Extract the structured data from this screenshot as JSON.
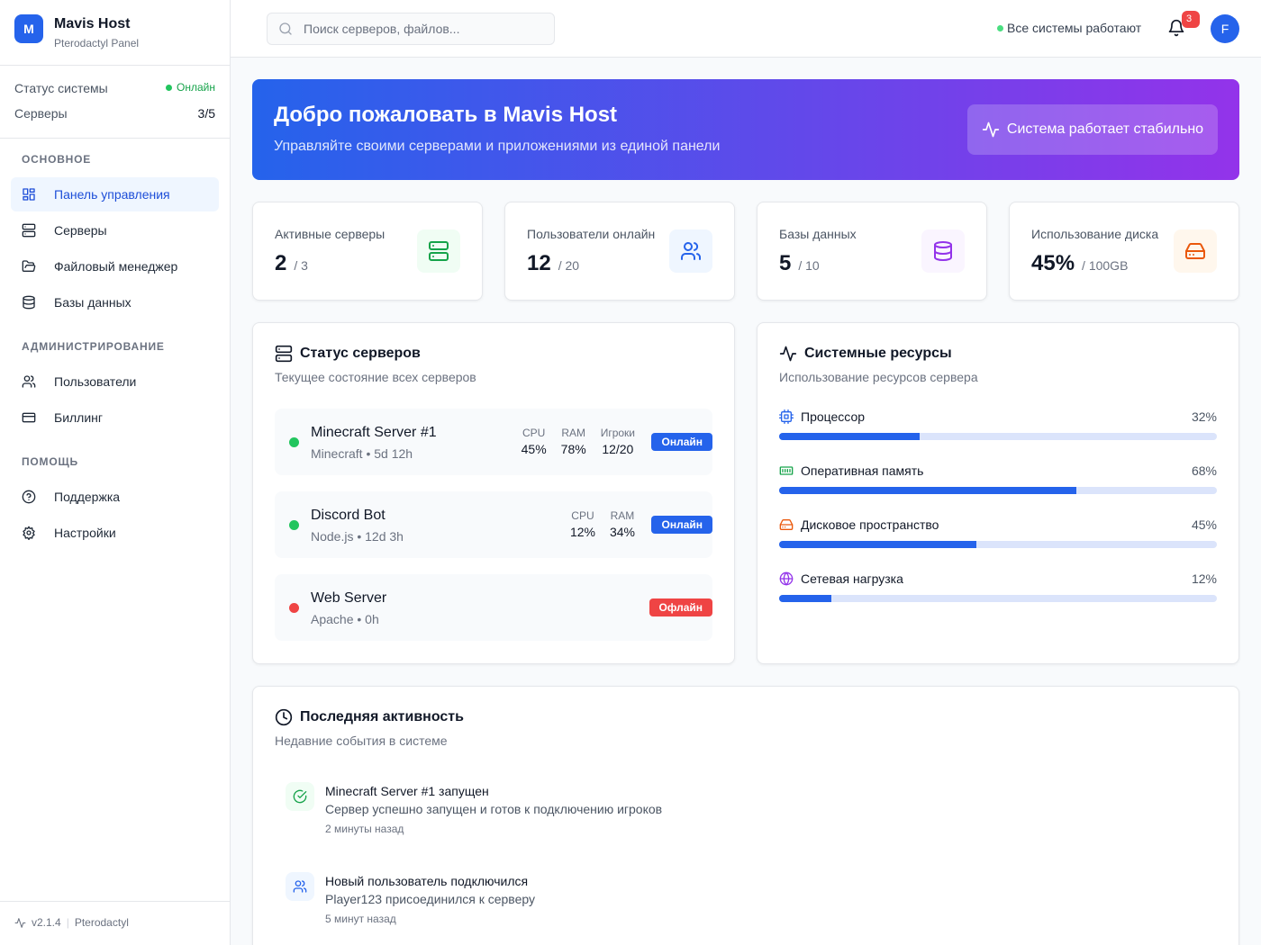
{
  "sidebar": {
    "logo": "M",
    "brand": "Mavis Host",
    "subtitle": "Pterodactyl Panel",
    "status": [
      {
        "label": "Статус системы",
        "value": "Онлайн"
      },
      {
        "label": "Серверы",
        "value": "3/5"
      }
    ],
    "sections": [
      {
        "title": "ОСНОВНОЕ",
        "items": [
          "Панель управления",
          "Серверы",
          "Файловый менеджер",
          "Базы данных"
        ]
      },
      {
        "title": "АДМИНИСТРИРОВАНИЕ",
        "items": [
          "Пользователи",
          "Биллинг"
        ]
      },
      {
        "title": "ПОМОЩЬ",
        "items": [
          "Поддержка",
          "Настройки"
        ]
      }
    ],
    "footer": {
      "version": "v2.1.4",
      "name": "Pterodactyl"
    }
  },
  "header": {
    "search_placeholder": "Поиск серверов, файлов...",
    "status": "Все системы работают",
    "notifications": "3",
    "avatar": "F"
  },
  "banner": {
    "title": "Добро пожаловать в Mavis Host",
    "subtitle": "Управляйте своими серверами и приложениями из единой панели",
    "button": "Система работает стабильно"
  },
  "stats": [
    {
      "label": "Активные серверы",
      "value": "2",
      "total": "/ 3"
    },
    {
      "label": "Пользователи онлайн",
      "value": "12",
      "total": "/ 20"
    },
    {
      "label": "Базы данных",
      "value": "5",
      "total": "/ 10"
    },
    {
      "label": "Использование диска",
      "value": "45%",
      "total": "/ 100GB"
    }
  ],
  "servers": {
    "title": "Статус серверов",
    "subtitle": "Текущее состояние всех серверов",
    "items": [
      {
        "name": "Minecraft Server #1",
        "meta": "Minecraft • 5d 12h",
        "status": "Онлайн",
        "color": "#22c55e",
        "badge_color": "#2563eb",
        "metrics": [
          {
            "label": "CPU",
            "value": "45%"
          },
          {
            "label": "RAM",
            "value": "78%"
          },
          {
            "label": "Игроки",
            "value": "12/20"
          }
        ]
      },
      {
        "name": "Discord Bot",
        "meta": "Node.js • 12d 3h",
        "status": "Онлайн",
        "color": "#22c55e",
        "badge_color": "#2563eb",
        "metrics": [
          {
            "label": "CPU",
            "value": "12%"
          },
          {
            "label": "RAM",
            "value": "34%"
          }
        ]
      },
      {
        "name": "Web Server",
        "meta": "Apache • 0h",
        "status": "Офлайн",
        "color": "#ef4444",
        "badge_color": "#ef4444",
        "metrics": []
      }
    ]
  },
  "resources": {
    "title": "Системные ресурсы",
    "subtitle": "Использование ресурсов сервера",
    "items": [
      {
        "name": "Процессор",
        "value": 32,
        "label": "32%"
      },
      {
        "name": "Оперативная память",
        "value": 68,
        "label": "68%"
      },
      {
        "name": "Дисковое пространство",
        "value": 45,
        "label": "45%"
      },
      {
        "name": "Сетевая нагрузка",
        "value": 12,
        "label": "12%"
      }
    ]
  },
  "activity": {
    "title": "Последняя активность",
    "subtitle": "Недавние события в системе",
    "items": [
      {
        "title": "Minecraft Server #1 запущен",
        "description": "Сервер успешно запущен и готов к подключению игроков",
        "time": "2 минуты назад"
      },
      {
        "title": "Новый пользователь подключился",
        "description": "Player123 присоединился к серверу",
        "time": "5 минут назад"
      }
    ]
  }
}
